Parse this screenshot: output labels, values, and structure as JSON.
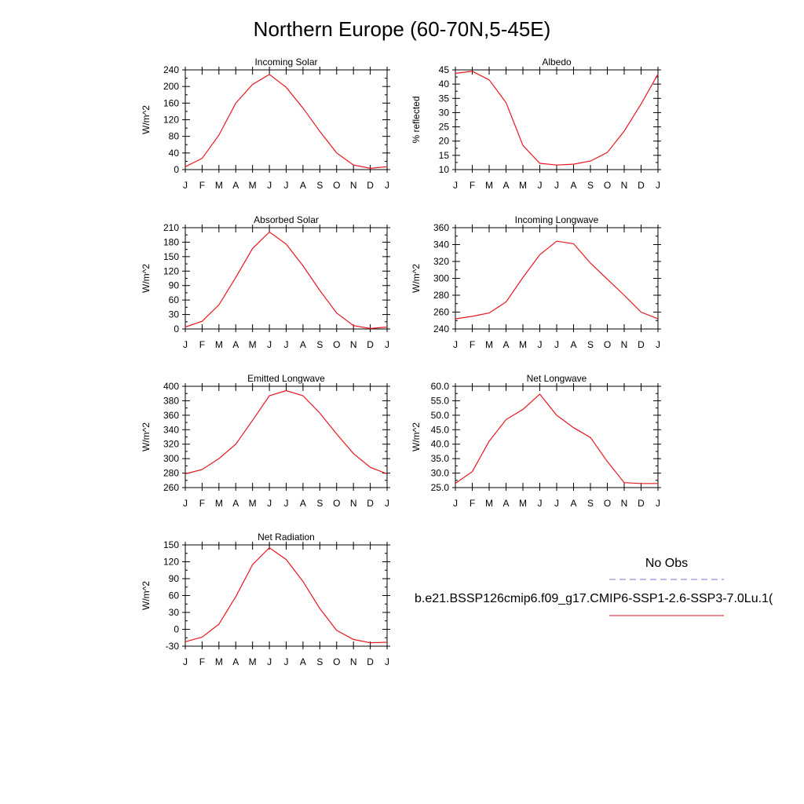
{
  "title": "Northern Europe (60-70N,5-45E)",
  "months": [
    "J",
    "F",
    "M",
    "A",
    "M",
    "J",
    "J",
    "A",
    "S",
    "O",
    "N",
    "D",
    "J"
  ],
  "legend": {
    "obs_label": "No Obs",
    "obs_color": "#7777dd",
    "model_label": "b.e21.BSSP126cmip6.f09_g17.CMIP6-SSP1-2.6-SSP3-7.0Lu.1(",
    "model_color": "#e8161e"
  },
  "chart_data": [
    {
      "type": "line",
      "title": "Incoming Solar",
      "xlabel": "",
      "ylabel": "W/m^2",
      "ylim": [
        0,
        240
      ],
      "yticks": [
        0,
        40,
        80,
        120,
        160,
        200,
        240
      ],
      "series": [
        {
          "values": [
            7,
            27,
            83,
            160,
            205,
            229,
            198,
            148,
            92,
            40,
            11,
            3,
            7
          ]
        }
      ]
    },
    {
      "type": "line",
      "title": "Albedo",
      "xlabel": "",
      "ylabel": "% reflected",
      "ylim": [
        10,
        45
      ],
      "yticks": [
        10,
        15,
        20,
        25,
        30,
        35,
        40,
        45
      ],
      "series": [
        {
          "values": [
            43.8,
            44.5,
            41.5,
            33.5,
            18.5,
            12.2,
            11.6,
            11.9,
            13,
            16,
            23.5,
            33,
            43.5
          ]
        }
      ]
    },
    {
      "type": "line",
      "title": "Absorbed Solar",
      "xlabel": "",
      "ylabel": "W/m^2",
      "ylim": [
        0,
        210
      ],
      "yticks": [
        0,
        30,
        60,
        90,
        120,
        150,
        180,
        210
      ],
      "series": [
        {
          "values": [
            4,
            16,
            50,
            107,
            167,
            201,
            176,
            131,
            80,
            33,
            7,
            1,
            4
          ]
        }
      ]
    },
    {
      "type": "line",
      "title": "Incoming Longwave",
      "xlabel": "",
      "ylabel": "W/m^2",
      "ylim": [
        240,
        360
      ],
      "yticks": [
        240,
        260,
        280,
        300,
        320,
        340,
        360
      ],
      "series": [
        {
          "values": [
            252,
            255,
            259,
            272,
            301,
            328,
            344,
            341,
            318,
            299,
            280,
            260,
            252
          ]
        }
      ]
    },
    {
      "type": "line",
      "title": "Emitted Longwave",
      "xlabel": "",
      "ylabel": "W/m^2",
      "ylim": [
        260,
        400
      ],
      "yticks": [
        260,
        280,
        300,
        320,
        340,
        360,
        380,
        400
      ],
      "series": [
        {
          "values": [
            279,
            285,
            300,
            320,
            353,
            387,
            394,
            387,
            363,
            334,
            307,
            288,
            279
          ]
        }
      ]
    },
    {
      "type": "line",
      "title": "Net Longwave",
      "xlabel": "",
      "ylabel": "W/m^2",
      "ylim": [
        25,
        60
      ],
      "yticks": [
        25,
        30,
        35,
        40,
        45,
        50,
        55,
        60
      ],
      "ytick_decimals": 1,
      "series": [
        {
          "values": [
            26.5,
            30.5,
            41,
            48.5,
            52,
            57.3,
            50,
            45.7,
            42.3,
            34,
            26.7,
            26.4,
            26.4
          ]
        }
      ]
    },
    {
      "type": "line",
      "title": "Net Radiation",
      "xlabel": "",
      "ylabel": "W/m^2",
      "ylim": [
        -30,
        150
      ],
      "yticks": [
        -30,
        0,
        30,
        60,
        90,
        120,
        150
      ],
      "series": [
        {
          "values": [
            -22,
            -14,
            9,
            58,
            115,
            145,
            124,
            85,
            37,
            -2,
            -18,
            -24,
            -23
          ]
        }
      ]
    }
  ]
}
